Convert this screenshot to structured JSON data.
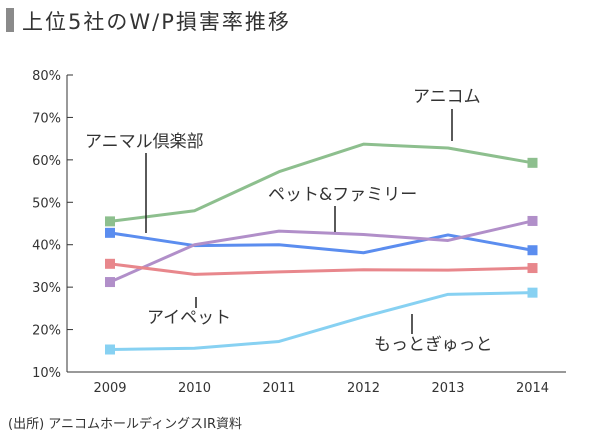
{
  "title": "上位5社のW/P損害率推移",
  "source": "(出所) アニコムホールディングスIR資料",
  "chart_data": {
    "type": "line",
    "title": "上位5社のW/P損害率推移",
    "xlabel": "",
    "ylabel": "",
    "categories": [
      "2009",
      "2010",
      "2011",
      "2012",
      "2013",
      "2014"
    ],
    "y_ticks": [
      10,
      20,
      30,
      40,
      50,
      60,
      70,
      80
    ],
    "y_tick_labels": [
      "10%",
      "20%",
      "30%",
      "40%",
      "50%",
      "60%",
      "70%",
      "80%"
    ],
    "ylim": [
      10,
      80
    ],
    "grid": false,
    "series": [
      {
        "name": "アニコム",
        "color": "#8dbf8e",
        "values": [
          45.5,
          48.0,
          57.2,
          63.7,
          62.8,
          59.3
        ]
      },
      {
        "name": "アニマル倶楽部",
        "color": "#5b8def",
        "values": [
          42.8,
          39.8,
          40.0,
          38.1,
          42.3,
          38.7
        ]
      },
      {
        "name": "ペット&ファミリー",
        "color": "#b18fc9",
        "values": [
          31.2,
          40.0,
          43.2,
          42.4,
          41.0,
          45.6
        ]
      },
      {
        "name": "アイペット",
        "color": "#e8878c",
        "values": [
          35.5,
          33.0,
          33.6,
          34.1,
          34.0,
          34.5
        ]
      },
      {
        "name": "もっとぎゅっと",
        "color": "#87d1f2",
        "values": [
          15.3,
          15.6,
          17.2,
          23.0,
          28.3,
          28.7
        ]
      }
    ]
  }
}
